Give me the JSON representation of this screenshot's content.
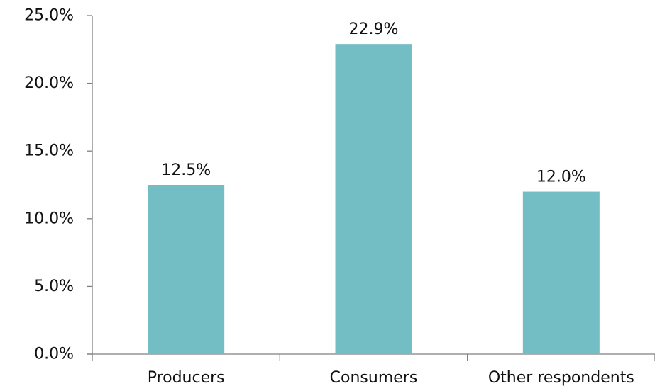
{
  "chart_data": {
    "type": "bar",
    "title": "",
    "xlabel": "",
    "ylabel": "",
    "categories": [
      "Producers",
      "Consumers",
      "Other respondents"
    ],
    "values": [
      12.5,
      22.9,
      12.0
    ],
    "data_labels": [
      "12.5%",
      "22.9%",
      "12.0%"
    ],
    "ylim": [
      0,
      25
    ],
    "yticks": [
      0,
      5,
      10,
      15,
      20,
      25
    ],
    "ytick_labels": [
      "0.0%",
      "5.0%",
      "10.0%",
      "15.0%",
      "20.0%",
      "25.0%"
    ],
    "bar_color": "#72bec4",
    "grid": false,
    "legend": "none"
  }
}
